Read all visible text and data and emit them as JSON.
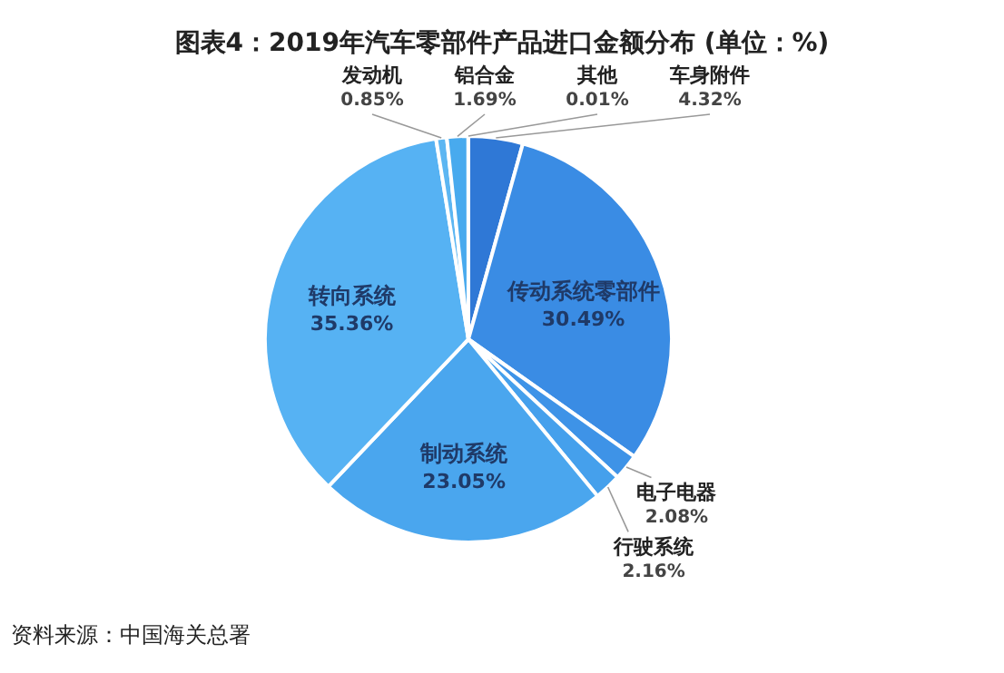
{
  "chart_data": {
    "type": "pie",
    "title": "图表4：2019年汽车零部件产品进口金额分布 (单位：%)",
    "categories": [
      "车身附件",
      "传动系统零部件",
      "电子电器",
      "行驶系统",
      "制动系统",
      "转向系统",
      "发动机",
      "铝合金",
      "其他"
    ],
    "values": [
      4.32,
      30.49,
      2.08,
      2.16,
      23.05,
      35.36,
      0.85,
      1.69,
      0.01
    ],
    "colors": [
      "#2f78d6",
      "#3a8ce4",
      "#3e93e7",
      "#45a0ec",
      "#4aa6ee",
      "#56b2f3",
      "#5cb6f2",
      "#48aaee",
      "#3a90e6"
    ],
    "value_labels": [
      "4.32%",
      "30.49%",
      "2.08%",
      "2.16%",
      "23.05%",
      "35.36%",
      "0.85%",
      "1.69%",
      "0.01%"
    ],
    "annotations": [
      "资料来源：中国海关总署"
    ]
  }
}
